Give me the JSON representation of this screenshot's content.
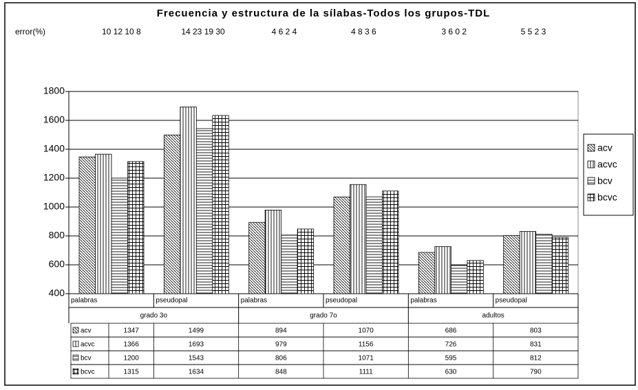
{
  "chart_data": {
    "type": "bar",
    "title": "Frecuencia y estructura de la sílabas-Todos los grupos-TDL",
    "error_label": "error(%)",
    "errors": [
      "10 12 10 8",
      "14 23 19 30",
      "4 6 2 4",
      "4 8 3 6",
      "3 6 0 2",
      "5 5 2 3"
    ],
    "categories": [
      "palabras",
      "pseudopal",
      "palabras",
      "pseudopal",
      "palabras",
      "pseudopal"
    ],
    "groups": [
      "grado 3o",
      "grado 7o",
      "adultos"
    ],
    "series": [
      {
        "name": "acv",
        "pattern": "diag",
        "color": "#000000",
        "values": [
          1347,
          1499,
          894,
          1070,
          686,
          803
        ]
      },
      {
        "name": "acvc",
        "pattern": "vert",
        "color": "#000000",
        "values": [
          1366,
          1693,
          979,
          1156,
          726,
          831
        ]
      },
      {
        "name": "bcv",
        "pattern": "horiz",
        "color": "#000000",
        "values": [
          1200,
          1543,
          806,
          1071,
          595,
          812
        ]
      },
      {
        "name": "bcvc",
        "pattern": "grid",
        "color": "#000000",
        "values": [
          1315,
          1634,
          848,
          1111,
          630,
          790
        ]
      }
    ],
    "ylim": [
      400,
      1800
    ],
    "yticks": [
      400,
      600,
      800,
      1000,
      1200,
      1400,
      1600,
      1800
    ],
    "grid": true,
    "legend": "right"
  }
}
